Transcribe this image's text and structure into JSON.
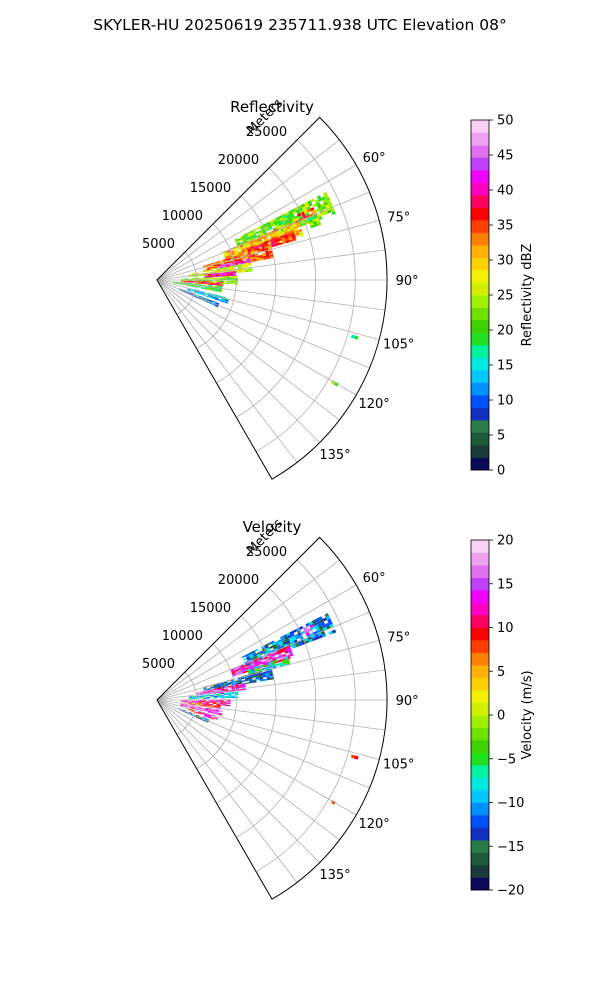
{
  "figure": {
    "title": "SKYLER-HU  20250619  235711.938 UTC Elevation 08°"
  },
  "chart_data": [
    {
      "type": "heatmap",
      "projection": "polar-sector",
      "title": "Reflectivity",
      "range_label": "Meters",
      "range_ticks": [
        5000,
        10000,
        15000,
        20000,
        25000
      ],
      "range_max": 29000,
      "azimuth_ticks": [
        "60°",
        "75°",
        "90°",
        "105°",
        "120°",
        "135°"
      ],
      "azimuth_tick_values": [
        60,
        75,
        90,
        105,
        120,
        135
      ],
      "azimuth_range": [
        45,
        150
      ],
      "grid": true,
      "colorbar": {
        "label": "Reflectivity dBZ",
        "min": 0,
        "max": 50,
        "ticks": [
          "0",
          "5",
          "10",
          "15",
          "20",
          "25",
          "30",
          "35",
          "40",
          "45",
          "50"
        ],
        "tick_values": [
          0,
          5,
          10,
          15,
          20,
          25,
          30,
          35,
          40,
          45,
          50
        ],
        "colors": [
          "#0a0a5a",
          "#1a3a3a",
          "#1c5a3a",
          "#2a7a4a",
          "#1030c0",
          "#0050ff",
          "#0090ff",
          "#00c8ff",
          "#00e8e0",
          "#00f0a0",
          "#20e020",
          "#40d000",
          "#70e000",
          "#a0f000",
          "#d0f000",
          "#f0f000",
          "#ffd000",
          "#ffb000",
          "#ff8000",
          "#ff4000",
          "#ff0000",
          "#ff0060",
          "#ff00c0",
          "#f000ff",
          "#c040ff",
          "#e070f0",
          "#f0a0f0",
          "#f8d0f8"
        ]
      },
      "echo_regions": [
        {
          "az": 66,
          "r": [
            11000,
            24000
          ],
          "w": 7,
          "value": 22
        },
        {
          "az": 70,
          "r": [
            9000,
            19000
          ],
          "w": 6,
          "value": 30
        },
        {
          "az": 72,
          "r": [
            12000,
            18000
          ],
          "w": 3,
          "value": 36
        },
        {
          "az": 76,
          "r": [
            6000,
            15000
          ],
          "w": 6,
          "value": 33
        },
        {
          "az": 78,
          "r": [
            8000,
            12000
          ],
          "w": 2.5,
          "value": 42
        },
        {
          "az": 82,
          "r": [
            4000,
            12000
          ],
          "w": 5,
          "value": 26
        },
        {
          "az": 85,
          "r": [
            6000,
            10000
          ],
          "w": 3,
          "value": 40
        },
        {
          "az": 90,
          "r": [
            3000,
            10000
          ],
          "w": 6,
          "value": 22
        },
        {
          "az": 93,
          "r": [
            3000,
            8000
          ],
          "w": 3,
          "value": 36
        },
        {
          "az": 98,
          "r": [
            2000,
            8000
          ],
          "w": 5,
          "value": 19
        },
        {
          "az": 106,
          "r": [
            4000,
            9000
          ],
          "w": 4,
          "value": 13
        },
        {
          "az": 112,
          "r": [
            3000,
            8000
          ],
          "w": 3,
          "value": 10
        },
        {
          "az": 66,
          "r": [
            19500,
            21500
          ],
          "w": 2,
          "value": 34
        },
        {
          "az": 70,
          "r": [
            20500,
            21500
          ],
          "w": 2.5,
          "value": 24
        },
        {
          "az": 106,
          "r": [
            25500,
            26200
          ],
          "w": 0.7,
          "value": 19
        },
        {
          "az": 120,
          "r": [
            25500,
            26000
          ],
          "w": 0.6,
          "value": 20
        }
      ]
    },
    {
      "type": "heatmap",
      "projection": "polar-sector",
      "title": "Velocity",
      "range_label": "Meters",
      "range_ticks": [
        5000,
        10000,
        15000,
        20000,
        25000
      ],
      "range_max": 29000,
      "azimuth_ticks": [
        "60°",
        "75°",
        "90°",
        "105°",
        "120°",
        "135°"
      ],
      "azimuth_tick_values": [
        60,
        75,
        90,
        105,
        120,
        135
      ],
      "azimuth_range": [
        45,
        150
      ],
      "grid": true,
      "colorbar": {
        "label": "Velocity (m/s)",
        "min": -20,
        "max": 20,
        "ticks": [
          "−20",
          "−15",
          "−10",
          "−5",
          "0",
          "5",
          "10",
          "15",
          "20"
        ],
        "tick_values": [
          -20,
          -15,
          -10,
          -5,
          0,
          5,
          10,
          15,
          20
        ],
        "colors": [
          "#0a0a5a",
          "#1a3a3a",
          "#1c5a3a",
          "#2a7a4a",
          "#1030c0",
          "#0050ff",
          "#0090ff",
          "#00c8ff",
          "#00e8e0",
          "#00f0a0",
          "#20e020",
          "#40d000",
          "#70e000",
          "#a0f000",
          "#d0f000",
          "#f0f000",
          "#ffd000",
          "#ffb000",
          "#ff8000",
          "#ff4000",
          "#ff0000",
          "#ff0060",
          "#ff00c0",
          "#f000ff",
          "#c040ff",
          "#e070f0",
          "#f0a0f0",
          "#f8d0f8"
        ]
      },
      "echo_regions": [
        {
          "az": 66,
          "r": [
            12000,
            24000
          ],
          "w": 6,
          "value": -12
        },
        {
          "az": 70,
          "r": [
            10000,
            18000
          ],
          "w": 5,
          "value": 13
        },
        {
          "az": 73,
          "r": [
            12000,
            17000
          ],
          "w": 3,
          "value": -7
        },
        {
          "az": 77,
          "r": [
            6000,
            15000
          ],
          "w": 5,
          "value": -14
        },
        {
          "az": 81,
          "r": [
            5000,
            11000
          ],
          "w": 4,
          "value": 14
        },
        {
          "az": 86,
          "r": [
            4000,
            10000
          ],
          "w": 4,
          "value": -9
        },
        {
          "az": 92,
          "r": [
            3000,
            9000
          ],
          "w": 5,
          "value": 12
        },
        {
          "az": 96,
          "r": [
            4000,
            8000
          ],
          "w": 3,
          "value": 10
        },
        {
          "az": 101,
          "r": [
            3000,
            8000
          ],
          "w": 4,
          "value": 14
        },
        {
          "az": 107,
          "r": [
            4000,
            8000
          ],
          "w": 3,
          "value": 11
        },
        {
          "az": 112,
          "r": [
            3000,
            7000
          ],
          "w": 3,
          "value": -13
        },
        {
          "az": 65,
          "r": [
            20500,
            21500
          ],
          "w": 2,
          "value": 16
        },
        {
          "az": 106,
          "r": [
            25500,
            26200
          ],
          "w": 0.7,
          "value": 7
        },
        {
          "az": 120,
          "r": [
            25500,
            26000
          ],
          "w": 0.6,
          "value": 7
        }
      ]
    }
  ]
}
